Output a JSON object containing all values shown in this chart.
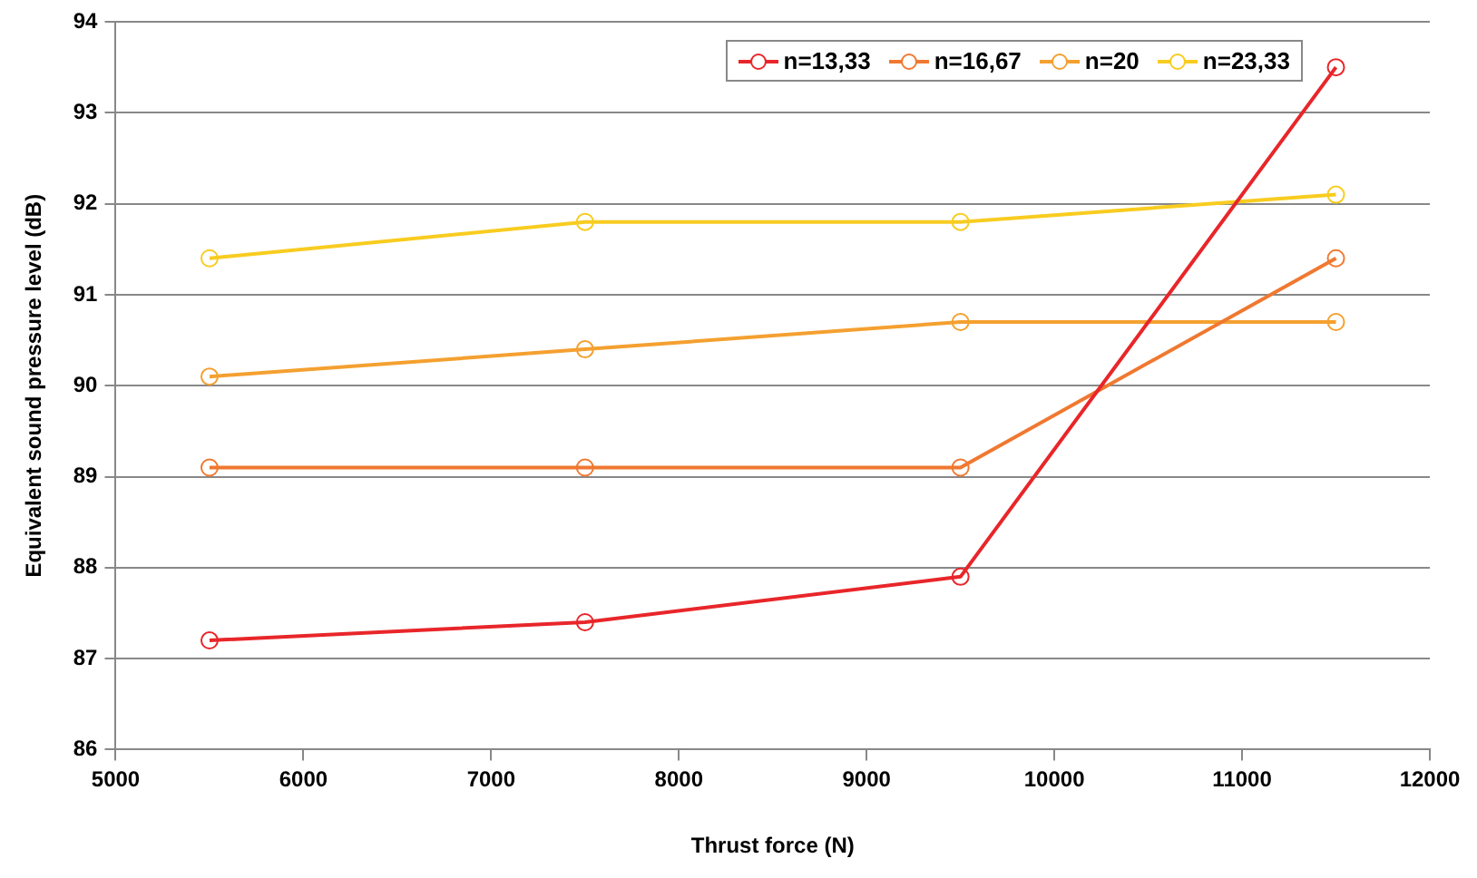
{
  "chart_data": {
    "type": "line",
    "xlabel": "Thrust force (N)",
    "ylabel": "Equivalent sound pressure level (dB)",
    "x": [
      5500,
      7500,
      9500,
      11500
    ],
    "series": [
      {
        "name": "n=13,33",
        "color": "#e8262a",
        "values": [
          87.2,
          87.4,
          87.9,
          93.5
        ]
      },
      {
        "name": "n=16,67",
        "color": "#f07830",
        "values": [
          89.1,
          89.1,
          89.1,
          91.4
        ]
      },
      {
        "name": "n=20",
        "color": "#f4a030",
        "values": [
          90.1,
          90.4,
          90.7,
          90.7
        ]
      },
      {
        "name": "n=23,33",
        "color": "#f8cc20",
        "values": [
          91.4,
          91.8,
          91.8,
          92.1
        ]
      }
    ],
    "xlim": [
      5000,
      12000
    ],
    "xticks": [
      5000,
      6000,
      7000,
      8000,
      9000,
      10000,
      11000,
      12000
    ],
    "ylim": [
      86,
      94
    ],
    "yticks": [
      86,
      87,
      88,
      89,
      90,
      91,
      92,
      93,
      94
    ],
    "grid": "y",
    "legend": "top right",
    "marker": "circle",
    "line_style": "solid"
  }
}
